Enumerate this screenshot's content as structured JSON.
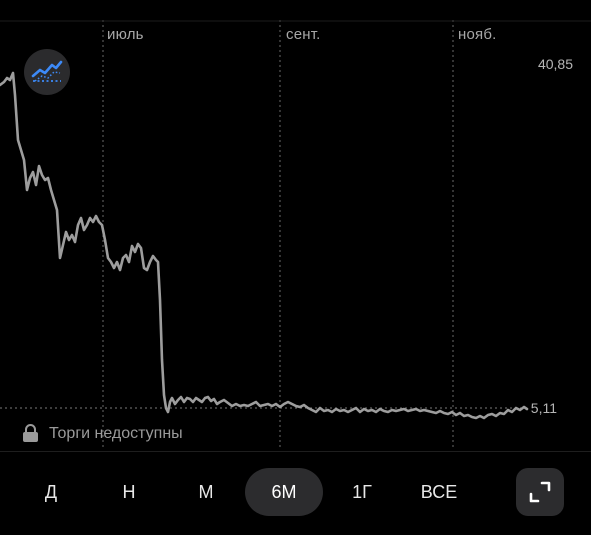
{
  "chart": {
    "month_labels": [
      "июль",
      "сент.",
      "нояб."
    ],
    "price_high": "40,85",
    "price_current": "5,11",
    "line_color": "#9d9d9d",
    "indicator_accent": "#3d8af7"
  },
  "status": {
    "text": "Торги недоступны",
    "icon": "lock-icon"
  },
  "ranges": {
    "items": [
      "Д",
      "Н",
      "М",
      "6М",
      "1Г",
      "ВСЕ"
    ],
    "selected": "6М"
  },
  "icons": {
    "indicator": "chart-indicator-icon",
    "expand": "expand-icon"
  }
}
